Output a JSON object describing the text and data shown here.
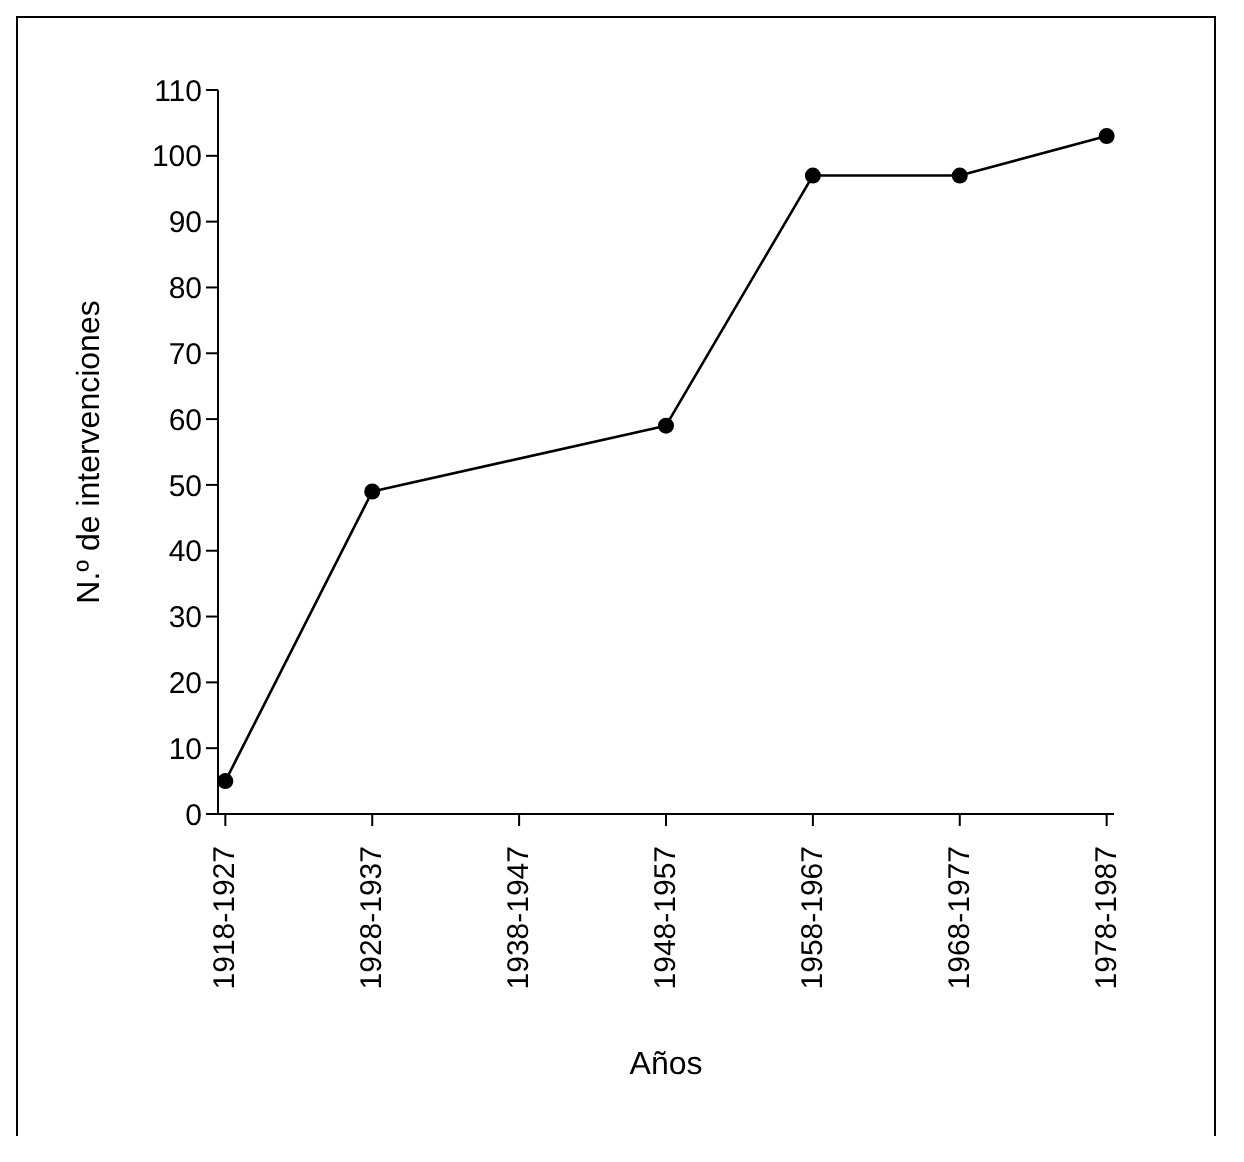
{
  "chart_data": {
    "type": "line",
    "xlabel": "Años",
    "ylabel": "N.º de intervenciones",
    "categories": [
      "1918-1927",
      "1928-1937",
      "1938-1947",
      "1948-1957",
      "1958-1967",
      "1968-1977",
      "1978-1987"
    ],
    "series": [
      {
        "color": "#000000",
        "values": [
          5,
          49,
          null,
          59,
          97,
          97,
          103
        ]
      }
    ],
    "ylim": [
      0,
      110
    ],
    "yticks": [
      0,
      10,
      20,
      30,
      40,
      50,
      60,
      70,
      80,
      90,
      100,
      110
    ],
    "grid": false,
    "marker": "circle",
    "line_style": "solid"
  }
}
